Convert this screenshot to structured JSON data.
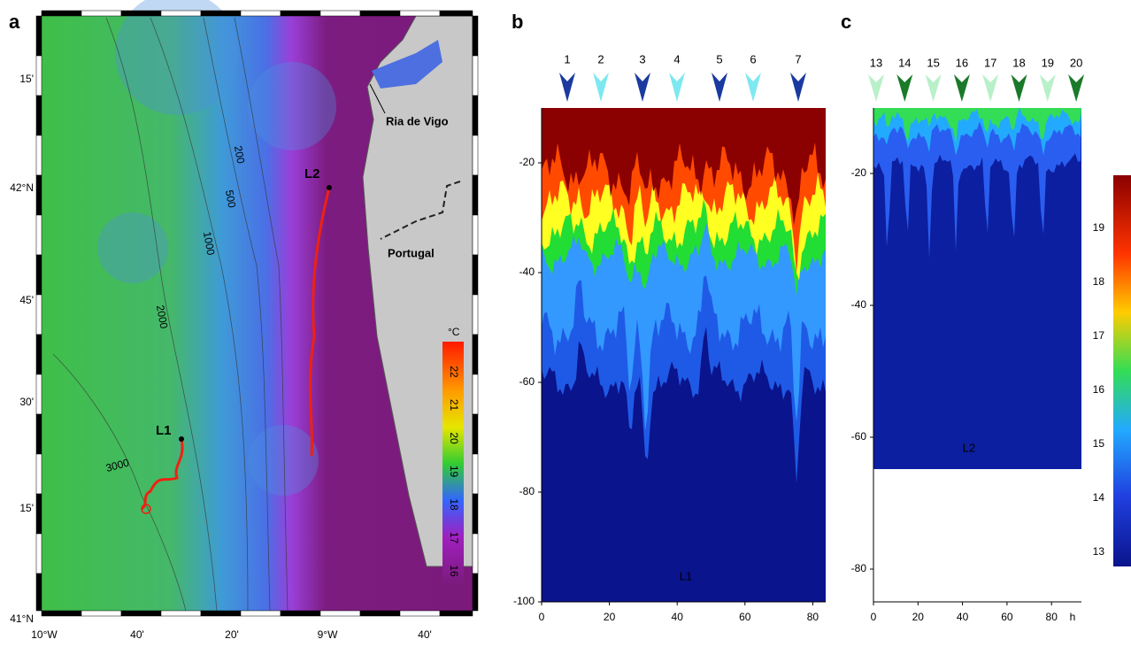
{
  "figure": {
    "a": {
      "letter": "a",
      "lat_labels": [
        "15'",
        "42°N",
        "45'",
        "30'",
        "15'",
        "41°N"
      ],
      "lon_labels": [
        "10°W",
        "40'",
        "20'",
        "9°W",
        "40'"
      ],
      "place_labels": [
        "Ria de Vigo",
        "Portugal"
      ],
      "float_labels": [
        "L1",
        "L2"
      ],
      "isobaths": [
        "3000",
        "2000",
        "1000",
        "500",
        "200"
      ],
      "colorbar_unit": "°C",
      "colorbar_ticks": [
        22,
        21,
        20,
        19,
        18,
        17,
        16
      ]
    },
    "b": {
      "letter": "b",
      "yticks": [
        -20,
        -40,
        -60,
        -80,
        -100
      ],
      "xticks": [
        0,
        20,
        40,
        60,
        80
      ],
      "arrows": [
        "1",
        "2",
        "3",
        "4",
        "5",
        "6",
        "7"
      ],
      "label": "L1"
    },
    "c": {
      "letter": "c",
      "yticks": [
        -20,
        -40,
        -60,
        -80
      ],
      "xticks": [
        0,
        20,
        40,
        60,
        80
      ],
      "x_unit": "h",
      "arrows": [
        "13",
        "14",
        "15",
        "16",
        "17",
        "18",
        "19",
        "20"
      ],
      "label": "L2",
      "colorbar_ticks": [
        19,
        18,
        17,
        16,
        15,
        14,
        13
      ]
    }
  }
}
